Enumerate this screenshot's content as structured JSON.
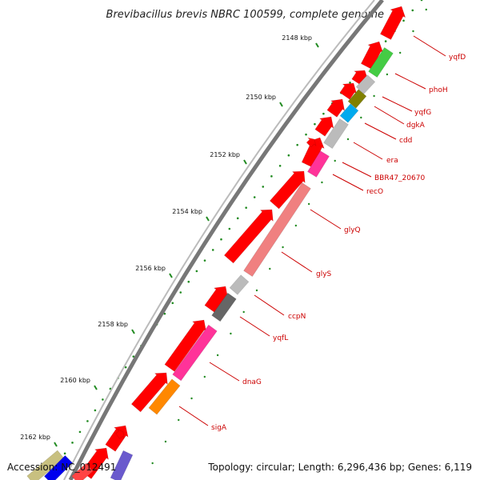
{
  "title": "Brevibacillus brevis NBRC 100599, complete genome",
  "footer": {
    "accession": "Accession: NC_012491",
    "summary": "Topology: circular; Length: 6,296,436 bp; Genes: 6,119"
  },
  "ticks": [
    "2148 kbp",
    "2150 kbp",
    "2152 kbp",
    "2154 kbp",
    "2156 kbp",
    "2158 kbp",
    "2160 kbp",
    "2162 kbp"
  ],
  "genes": [
    "yqfD",
    "phoH",
    "yqfG",
    "dgkA",
    "cdd",
    "era",
    "BBR47_20670",
    "recO",
    "glyQ",
    "glyS",
    "ccpN",
    "yqfL",
    "dnaG",
    "sigA"
  ],
  "colors": {
    "cds": "#ff0000",
    "pink": "#ff3399",
    "salmon": "#f08080",
    "gray": "#bbbbbb",
    "darkgray": "#666666",
    "green": "#44cc44",
    "olive": "#808000",
    "cyan": "#00aaee",
    "orange": "#ff8800",
    "backbone": "#777777",
    "tick": "#228B22",
    "label": "#cc0000"
  }
}
